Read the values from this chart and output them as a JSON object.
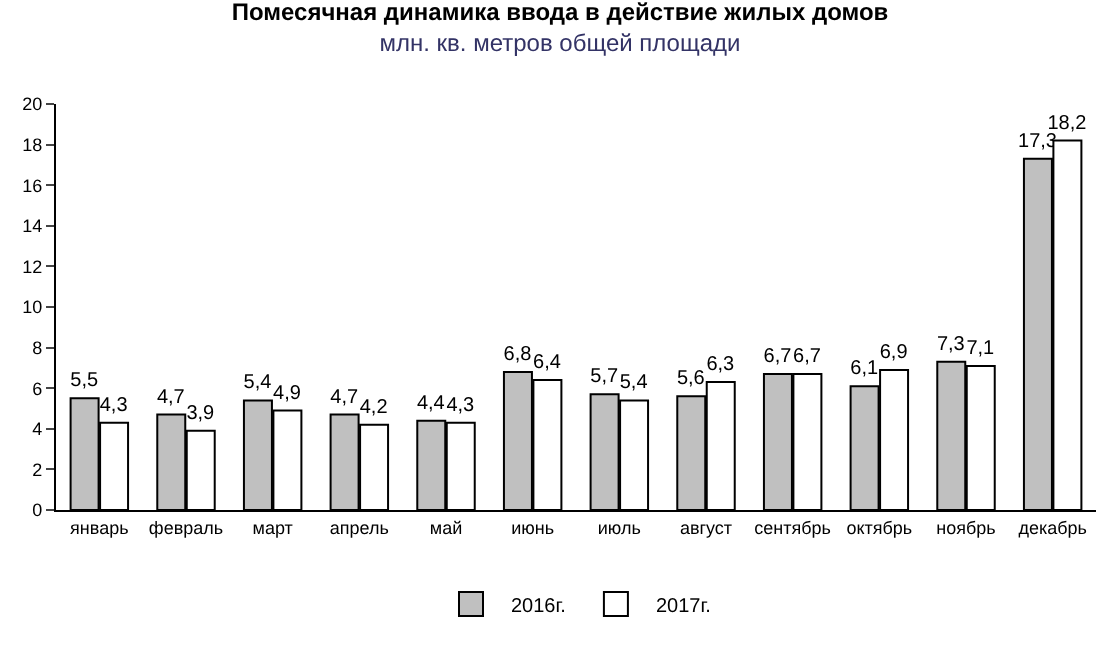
{
  "chart_data": {
    "type": "bar",
    "title": "Помесячная динамика ввода в действие жилых домов",
    "subtitle": "млн. кв. метров общей площади",
    "categories": [
      "январь",
      "февраль",
      "март",
      "апрель",
      "май",
      "июнь",
      "июль",
      "август",
      "сентябрь",
      "октябрь",
      "ноябрь",
      "декабрь"
    ],
    "series": [
      {
        "name": "2016г.",
        "color": "#c0c0c0",
        "values": [
          5.5,
          4.7,
          5.4,
          4.7,
          4.4,
          6.8,
          5.7,
          5.6,
          6.7,
          6.1,
          7.3,
          17.3
        ],
        "value_labels": [
          "5,5",
          "4,7",
          "5,4",
          "4,7",
          "4,4",
          "6,8",
          "5,7",
          "5,6",
          "6,7",
          "6,1",
          "7,3",
          "17,3"
        ]
      },
      {
        "name": "2017г.",
        "color": "#ffffff",
        "values": [
          4.3,
          3.9,
          4.9,
          4.2,
          4.3,
          6.4,
          5.4,
          6.3,
          6.7,
          6.9,
          7.1,
          18.2
        ],
        "value_labels": [
          "4,3",
          "3,9",
          "4,9",
          "4,2",
          "4,3",
          "6,4",
          "5,4",
          "6,3",
          "6,7",
          "6,9",
          "7,1",
          "18,2"
        ]
      }
    ],
    "ylim": [
      0,
      20
    ],
    "yticks": [
      0,
      2,
      4,
      6,
      8,
      10,
      12,
      14,
      16,
      18,
      20
    ],
    "grid": false,
    "legend": "bottom"
  }
}
